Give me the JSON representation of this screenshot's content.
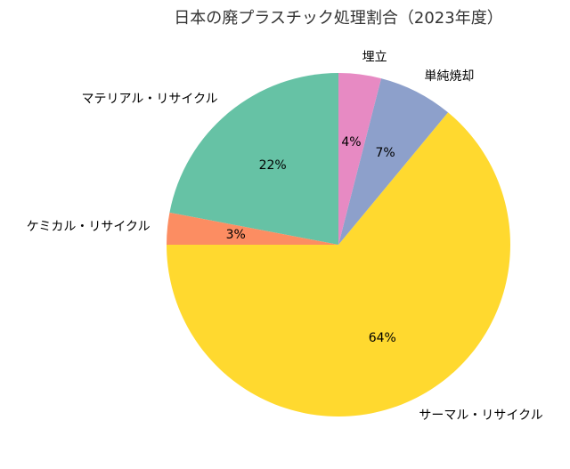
{
  "chart_data": {
    "type": "pie",
    "title": "日本の廃プラスチック処理割合（2023年度）",
    "start_angle_deg": 90,
    "direction": "counterclockwise",
    "slices": [
      {
        "label": "マテリアル・リサイクル",
        "value": 22,
        "pct_label": "22%",
        "color": "#66c2a5"
      },
      {
        "label": "ケミカル・リサイクル",
        "value": 3,
        "pct_label": "3%",
        "color": "#fc8d62"
      },
      {
        "label": "サーマル・リサイクル",
        "value": 64,
        "pct_label": "64%",
        "color": "#ffd92f"
      },
      {
        "label": "単純焼却",
        "value": 7,
        "pct_label": "7%",
        "color": "#8da0cb"
      },
      {
        "label": "埋立",
        "value": 4,
        "pct_label": "4%",
        "color": "#e78ac3"
      }
    ]
  }
}
